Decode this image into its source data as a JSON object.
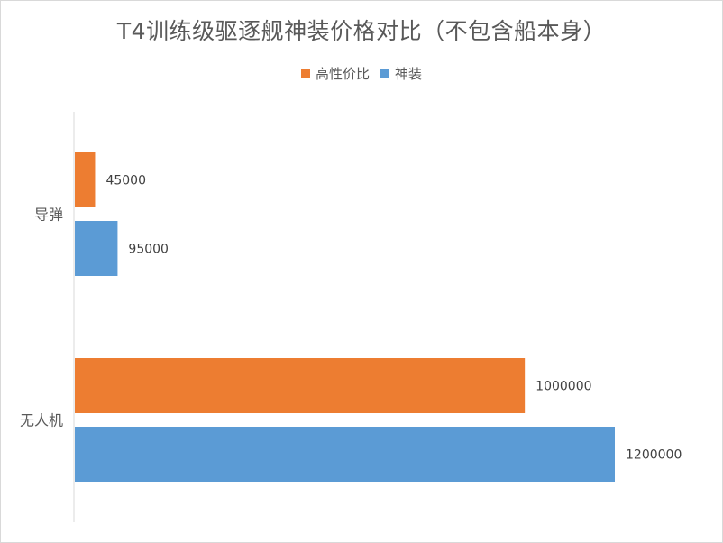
{
  "chart_data": {
    "type": "bar",
    "orientation": "horizontal",
    "title": "T4训练级驱逐舰神装价格对比（不包含船本身）",
    "categories": [
      "导弹",
      "无人机"
    ],
    "series": [
      {
        "name": "高性价比",
        "color": "#ED7D31",
        "values": [
          45000,
          1000000
        ]
      },
      {
        "name": "神装",
        "color": "#5B9BD5",
        "values": [
          95000,
          1200000
        ]
      }
    ],
    "data_labels": true,
    "xlim": [
      0,
      1200000
    ],
    "xaxis_visible": false,
    "grid": false,
    "legend_position": "top"
  }
}
